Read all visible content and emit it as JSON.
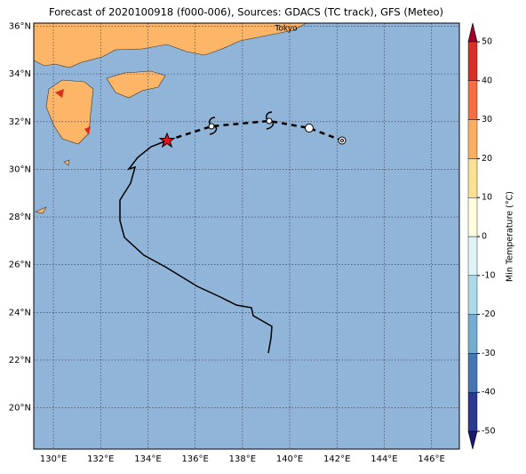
{
  "title": "Forecast of 2020100918 (f000-006), Sources: GDACS (TC track), GFS (Meteo)",
  "map": {
    "lon_range": [
      129.17,
      147.18
    ],
    "lat_range": [
      18.27,
      36.13
    ],
    "lon_ticks": [
      {
        "value": 130,
        "label": "130°E"
      },
      {
        "value": 132,
        "label": "132°E"
      },
      {
        "value": 134,
        "label": "134°E"
      },
      {
        "value": 136,
        "label": "136°E"
      },
      {
        "value": 138,
        "label": "138°E"
      },
      {
        "value": 140,
        "label": "140°E"
      },
      {
        "value": 142,
        "label": "142°E"
      },
      {
        "value": 144,
        "label": "144°E"
      },
      {
        "value": 146,
        "label": "146°E"
      }
    ],
    "lat_ticks": [
      {
        "value": 20,
        "label": "20°N"
      },
      {
        "value": 22,
        "label": "22°N"
      },
      {
        "value": 24,
        "label": "24°N"
      },
      {
        "value": 26,
        "label": "26°N"
      },
      {
        "value": 28,
        "label": "28°N"
      },
      {
        "value": 30,
        "label": "30°N"
      },
      {
        "value": 32,
        "label": "32°N"
      },
      {
        "value": 34,
        "label": "34°N"
      },
      {
        "value": 36,
        "label": "36°N"
      }
    ],
    "city": "Tokyo"
  },
  "colorbar": {
    "label": "Min Temperature (°C)",
    "range": [
      -50,
      50
    ],
    "ticks": [
      -50,
      -40,
      -30,
      -20,
      -10,
      0,
      10,
      20,
      30,
      40,
      50
    ]
  }
}
